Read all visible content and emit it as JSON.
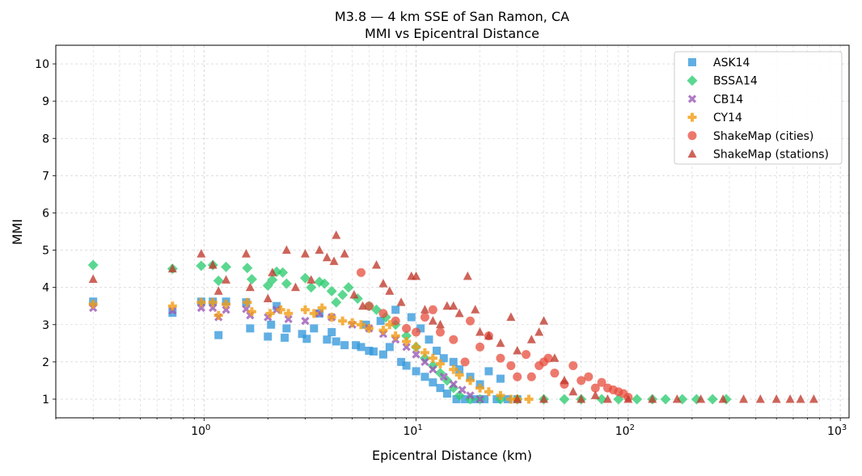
{
  "chart_data": {
    "type": "scatter",
    "title": "M3.8 — 4 km SSE of San Ramon, CA",
    "subtitle": "MMI vs Epicentral Distance",
    "xlabel": "Epicentral Distance (km)",
    "ylabel": "MMI",
    "xscale": "log",
    "xlim": [
      0.2,
      1100
    ],
    "ylim": [
      0.5,
      10.5
    ],
    "x_ticks": [
      1,
      10,
      100,
      1000
    ],
    "x_tick_labels": [
      "10",
      "10",
      "10",
      "10"
    ],
    "x_tick_exponents": [
      "0",
      "1",
      "2",
      "3"
    ],
    "y_ticks": [
      1,
      2,
      3,
      4,
      5,
      6,
      7,
      8,
      9,
      10
    ],
    "y_tick_labels": [
      "1",
      "2",
      "3",
      "4",
      "5",
      "6",
      "7",
      "8",
      "9",
      "10"
    ],
    "grid": true,
    "legend_position": "top-right",
    "series": [
      {
        "name": "ASK14",
        "marker": "square",
        "color": "#3498db",
        "points": [
          [
            0.3,
            3.62
          ],
          [
            0.71,
            3.32
          ],
          [
            0.97,
            3.62
          ],
          [
            1.1,
            3.62
          ],
          [
            1.17,
            2.72
          ],
          [
            1.27,
            3.62
          ],
          [
            1.58,
            3.6
          ],
          [
            1.65,
            2.9
          ],
          [
            2.0,
            2.68
          ],
          [
            2.07,
            3.0
          ],
          [
            2.2,
            3.5
          ],
          [
            2.4,
            2.65
          ],
          [
            2.45,
            2.9
          ],
          [
            2.9,
            2.75
          ],
          [
            3.05,
            2.62
          ],
          [
            3.3,
            2.9
          ],
          [
            3.5,
            3.3
          ],
          [
            3.8,
            2.6
          ],
          [
            4.0,
            2.8
          ],
          [
            4.2,
            2.55
          ],
          [
            4.6,
            2.45
          ],
          [
            5.2,
            2.45
          ],
          [
            5.5,
            2.4
          ],
          [
            5.8,
            3.0
          ],
          [
            6.0,
            2.3
          ],
          [
            6.3,
            2.28
          ],
          [
            6.8,
            3.1
          ],
          [
            7.0,
            2.2
          ],
          [
            7.5,
            2.4
          ],
          [
            8.0,
            3.4
          ],
          [
            8.5,
            2.0
          ],
          [
            9.0,
            1.9
          ],
          [
            9.5,
            3.2
          ],
          [
            10,
            1.75
          ],
          [
            10.5,
            2.9
          ],
          [
            11,
            1.6
          ],
          [
            11.5,
            2.6
          ],
          [
            12,
            1.45
          ],
          [
            12.5,
            2.3
          ],
          [
            13,
            1.3
          ],
          [
            13.5,
            2.1
          ],
          [
            14,
            1.15
          ],
          [
            15,
            2.0
          ],
          [
            15.5,
            1.0
          ],
          [
            16,
            1.8
          ],
          [
            17,
            1.0
          ],
          [
            18,
            1.6
          ],
          [
            19,
            1.0
          ],
          [
            20,
            1.4
          ],
          [
            21,
            1.0
          ],
          [
            22,
            1.75
          ],
          [
            24,
            1.0
          ],
          [
            25,
            1.55
          ],
          [
            27,
            1.0
          ],
          [
            30,
            1.0
          ]
        ]
      },
      {
        "name": "BSSA14",
        "marker": "diamond",
        "color": "#2ecc71",
        "points": [
          [
            0.3,
            4.6
          ],
          [
            0.71,
            4.5
          ],
          [
            0.97,
            4.58
          ],
          [
            1.1,
            4.6
          ],
          [
            1.17,
            4.18
          ],
          [
            1.27,
            4.55
          ],
          [
            1.6,
            4.52
          ],
          [
            1.68,
            4.22
          ],
          [
            2.0,
            4.05
          ],
          [
            2.1,
            4.2
          ],
          [
            2.2,
            4.42
          ],
          [
            2.35,
            4.4
          ],
          [
            2.45,
            4.1
          ],
          [
            3.0,
            4.25
          ],
          [
            3.2,
            4.0
          ],
          [
            3.5,
            4.15
          ],
          [
            3.7,
            4.1
          ],
          [
            4.0,
            3.9
          ],
          [
            4.2,
            3.6
          ],
          [
            4.5,
            3.8
          ],
          [
            4.8,
            4.0
          ],
          [
            5.3,
            3.7
          ],
          [
            6.0,
            3.5
          ],
          [
            6.5,
            3.4
          ],
          [
            7.2,
            3.2
          ],
          [
            8.0,
            3.0
          ],
          [
            9.0,
            2.7
          ],
          [
            10,
            2.4
          ],
          [
            11,
            2.1
          ],
          [
            12,
            1.9
          ],
          [
            13,
            1.7
          ],
          [
            14,
            1.5
          ],
          [
            15,
            1.3
          ],
          [
            16,
            1.1
          ],
          [
            18,
            1.0
          ],
          [
            20,
            1.0
          ],
          [
            25,
            1.0
          ],
          [
            30,
            1.0
          ],
          [
            40,
            1.0
          ],
          [
            50,
            1.0
          ],
          [
            60,
            1.0
          ],
          [
            75,
            1.0
          ],
          [
            90,
            1.0
          ],
          [
            110,
            1.0
          ],
          [
            130,
            1.0
          ],
          [
            150,
            1.0
          ],
          [
            180,
            1.0
          ],
          [
            210,
            1.0
          ],
          [
            250,
            1.0
          ],
          [
            290,
            1.0
          ]
        ]
      },
      {
        "name": "CB14",
        "marker": "x",
        "color": "#9b59b6",
        "points": [
          [
            0.3,
            3.45
          ],
          [
            0.71,
            3.38
          ],
          [
            0.97,
            3.45
          ],
          [
            1.1,
            3.45
          ],
          [
            1.17,
            3.2
          ],
          [
            1.27,
            3.4
          ],
          [
            1.58,
            3.42
          ],
          [
            1.65,
            3.25
          ],
          [
            2.0,
            3.2
          ],
          [
            2.2,
            3.4
          ],
          [
            2.5,
            3.15
          ],
          [
            3.0,
            3.1
          ],
          [
            3.5,
            3.3
          ],
          [
            4.0,
            3.2
          ],
          [
            5.0,
            3.0
          ],
          [
            6.0,
            2.9
          ],
          [
            7.0,
            2.75
          ],
          [
            8.0,
            2.6
          ],
          [
            9.0,
            2.4
          ],
          [
            10,
            2.2
          ],
          [
            11,
            2.0
          ],
          [
            12,
            1.8
          ],
          [
            13.5,
            1.6
          ],
          [
            15,
            1.4
          ],
          [
            16.5,
            1.25
          ],
          [
            18,
            1.1
          ],
          [
            20,
            1.0
          ]
        ]
      },
      {
        "name": "CY14",
        "marker": "plus",
        "color": "#f39c12",
        "points": [
          [
            0.3,
            3.55
          ],
          [
            0.71,
            3.5
          ],
          [
            0.97,
            3.6
          ],
          [
            1.1,
            3.6
          ],
          [
            1.17,
            3.25
          ],
          [
            1.27,
            3.55
          ],
          [
            1.6,
            3.6
          ],
          [
            1.68,
            3.35
          ],
          [
            2.05,
            3.3
          ],
          [
            2.3,
            3.4
          ],
          [
            2.5,
            3.3
          ],
          [
            3.0,
            3.4
          ],
          [
            3.3,
            3.3
          ],
          [
            3.6,
            3.45
          ],
          [
            4.0,
            3.2
          ],
          [
            4.5,
            3.1
          ],
          [
            5.0,
            3.05
          ],
          [
            5.5,
            3.0
          ],
          [
            6.0,
            2.9
          ],
          [
            7.0,
            2.85
          ],
          [
            7.5,
            3.0
          ],
          [
            8.0,
            2.7
          ],
          [
            9.0,
            2.55
          ],
          [
            10,
            2.4
          ],
          [
            11,
            2.25
          ],
          [
            12,
            2.1
          ],
          [
            13,
            1.95
          ],
          [
            15,
            1.8
          ],
          [
            16,
            1.65
          ],
          [
            18,
            1.5
          ],
          [
            20,
            1.3
          ],
          [
            22,
            1.2
          ],
          [
            25,
            1.1
          ],
          [
            28,
            1.0
          ],
          [
            30,
            1.0
          ],
          [
            34,
            1.0
          ]
        ]
      },
      {
        "name": "ShakeMap (cities)",
        "marker": "circle",
        "color": "#e74c3c",
        "points": [
          [
            5.5,
            4.4
          ],
          [
            6.0,
            3.5
          ],
          [
            7.0,
            3.3
          ],
          [
            8.0,
            3.1
          ],
          [
            9.0,
            2.9
          ],
          [
            10,
            2.8
          ],
          [
            11,
            3.2
          ],
          [
            12,
            3.4
          ],
          [
            13,
            2.8
          ],
          [
            15,
            2.6
          ],
          [
            17,
            2.0
          ],
          [
            18,
            3.1
          ],
          [
            20,
            2.4
          ],
          [
            22,
            2.7
          ],
          [
            25,
            2.1
          ],
          [
            28,
            1.9
          ],
          [
            30,
            1.6
          ],
          [
            33,
            2.2
          ],
          [
            35,
            1.6
          ],
          [
            38,
            1.9
          ],
          [
            40,
            2.0
          ],
          [
            42,
            2.1
          ],
          [
            45,
            1.7
          ],
          [
            50,
            1.4
          ],
          [
            55,
            1.9
          ],
          [
            60,
            1.5
          ],
          [
            65,
            1.6
          ],
          [
            70,
            1.3
          ],
          [
            75,
            1.45
          ],
          [
            80,
            1.3
          ],
          [
            85,
            1.25
          ],
          [
            90,
            1.2
          ],
          [
            95,
            1.15
          ],
          [
            100,
            1.05
          ]
        ]
      },
      {
        "name": "ShakeMap (stations)",
        "marker": "triangle",
        "color": "#c0392b",
        "points": [
          [
            0.3,
            4.22
          ],
          [
            0.71,
            4.5
          ],
          [
            0.97,
            4.9
          ],
          [
            1.1,
            4.6
          ],
          [
            1.17,
            3.9
          ],
          [
            1.27,
            4.2
          ],
          [
            1.58,
            4.9
          ],
          [
            1.65,
            4.0
          ],
          [
            2.0,
            3.7
          ],
          [
            2.1,
            4.4
          ],
          [
            2.45,
            5.0
          ],
          [
            2.7,
            4.0
          ],
          [
            3.0,
            4.9
          ],
          [
            3.2,
            4.2
          ],
          [
            3.5,
            5.0
          ],
          [
            3.8,
            4.8
          ],
          [
            4.1,
            4.7
          ],
          [
            4.2,
            5.4
          ],
          [
            4.6,
            4.9
          ],
          [
            5.1,
            3.8
          ],
          [
            5.6,
            3.5
          ],
          [
            6.5,
            4.6
          ],
          [
            7.0,
            4.1
          ],
          [
            7.5,
            3.9
          ],
          [
            8.5,
            3.6
          ],
          [
            9.5,
            4.3
          ],
          [
            10,
            4.3
          ],
          [
            11,
            3.4
          ],
          [
            12,
            3.1
          ],
          [
            13,
            3.0
          ],
          [
            14,
            3.5
          ],
          [
            15,
            3.5
          ],
          [
            16,
            3.3
          ],
          [
            17.5,
            4.3
          ],
          [
            19,
            3.4
          ],
          [
            20,
            2.8
          ],
          [
            22,
            2.7
          ],
          [
            25,
            2.5
          ],
          [
            28,
            3.2
          ],
          [
            30,
            2.3
          ],
          [
            35,
            2.6
          ],
          [
            38,
            2.8
          ],
          [
            40,
            3.1
          ],
          [
            45,
            2.1
          ],
          [
            50,
            1.5
          ],
          [
            55,
            1.2
          ],
          [
            70,
            1.1
          ],
          [
            30,
            1.0
          ],
          [
            40,
            1.0
          ],
          [
            60,
            1.0
          ],
          [
            80,
            1.0
          ],
          [
            100,
            1.0
          ],
          [
            130,
            1.0
          ],
          [
            170,
            1.0
          ],
          [
            220,
            1.0
          ],
          [
            280,
            1.0
          ],
          [
            350,
            1.0
          ],
          [
            420,
            1.0
          ],
          [
            500,
            1.0
          ],
          [
            580,
            1.0
          ],
          [
            650,
            1.0
          ],
          [
            750,
            1.0
          ]
        ]
      }
    ]
  }
}
